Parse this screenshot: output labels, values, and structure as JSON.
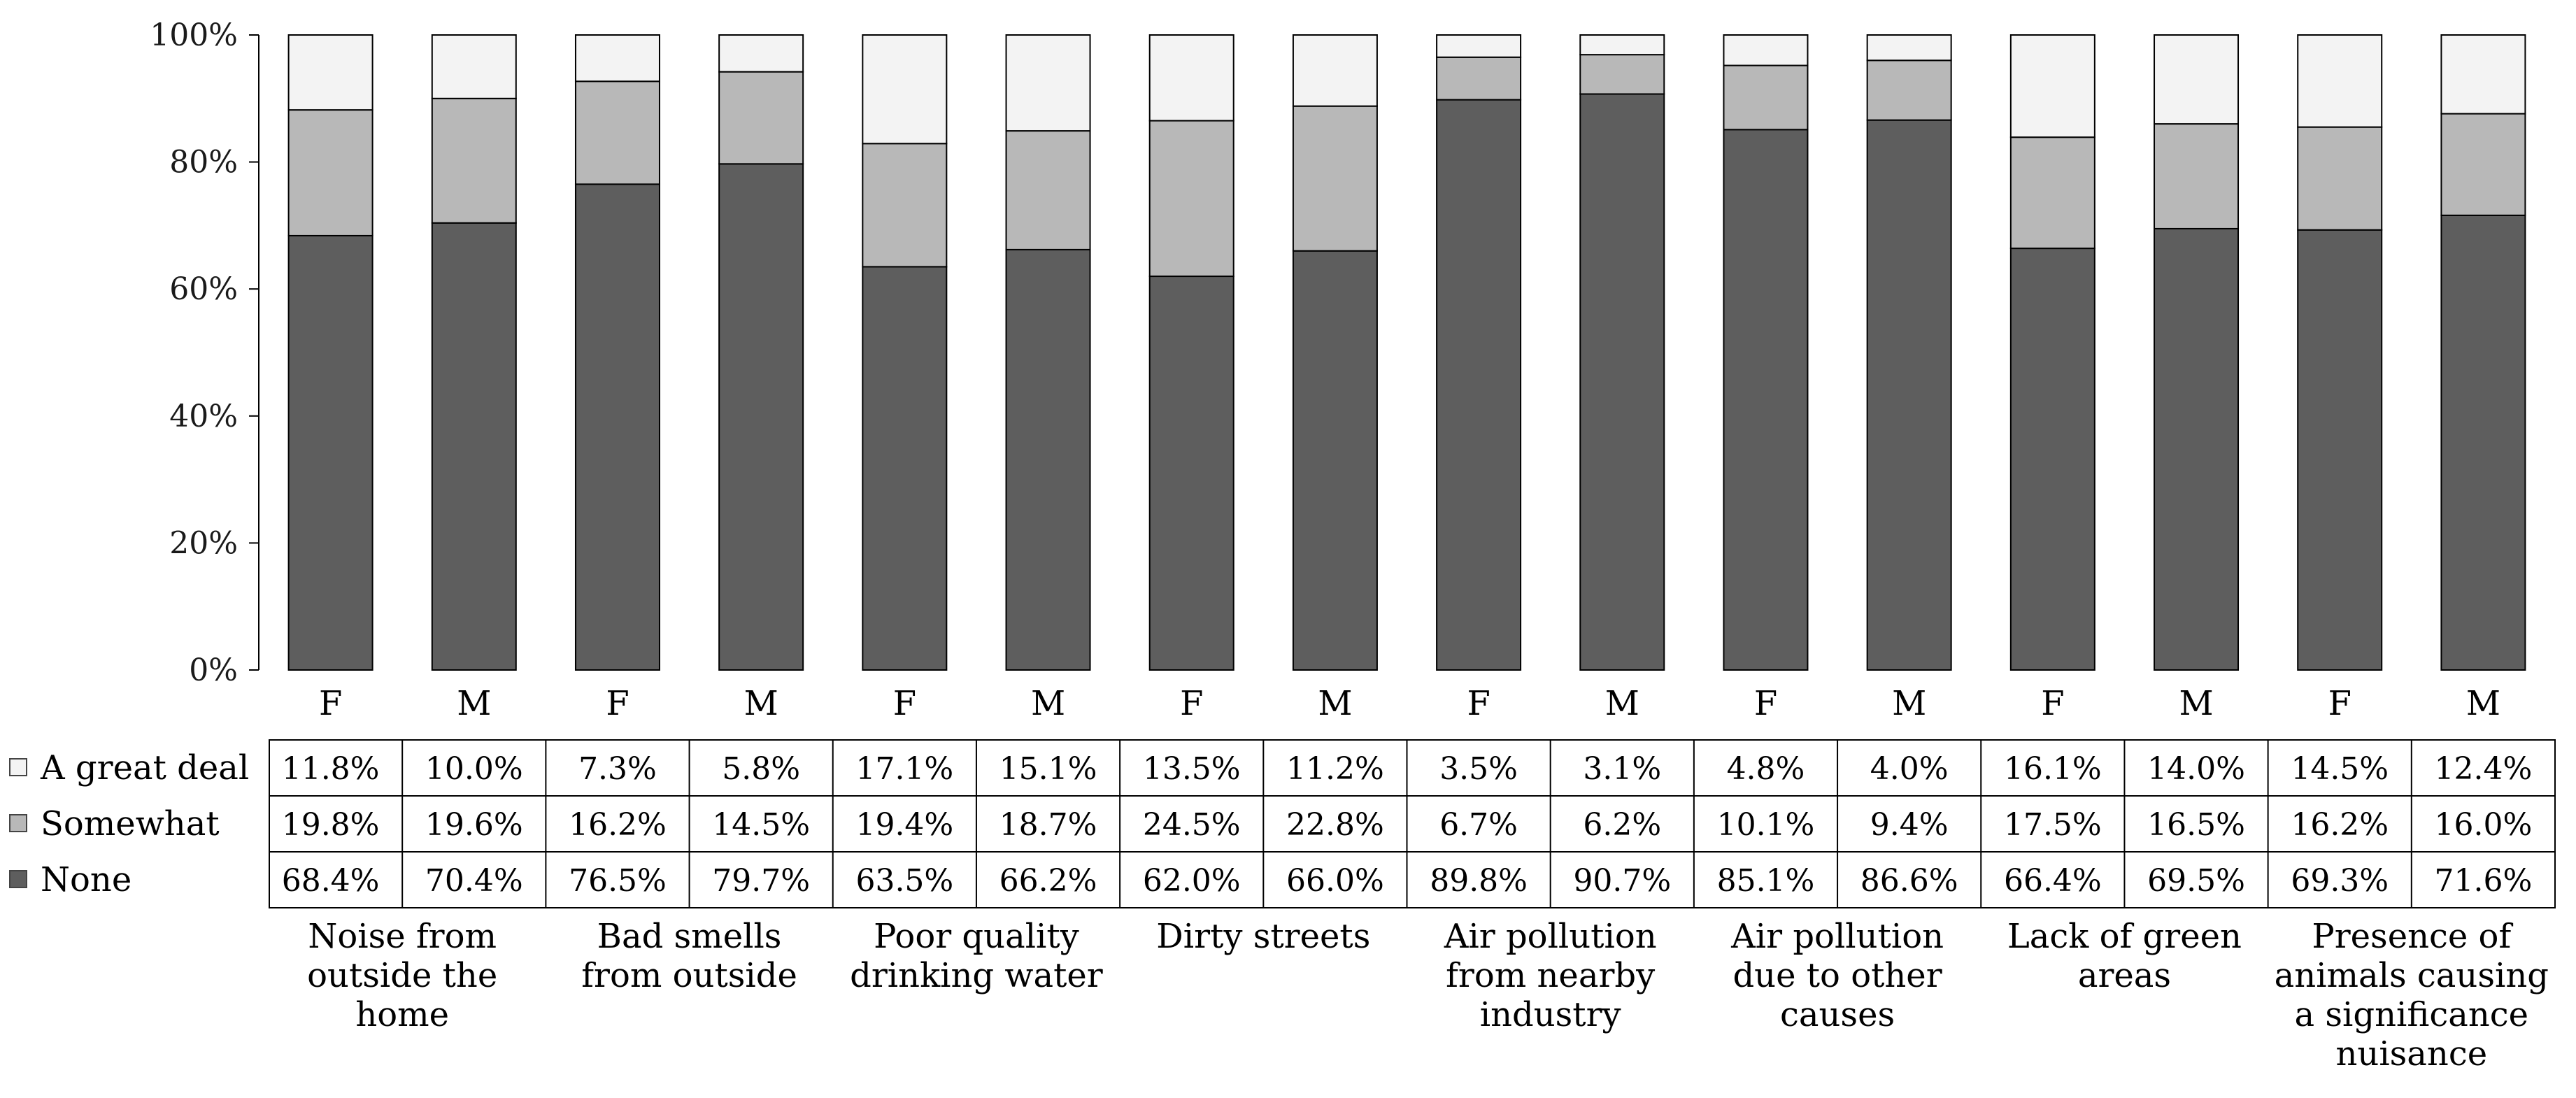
{
  "chart_data": {
    "type": "bar",
    "stacked": true,
    "percent": true,
    "ylim": [
      0,
      100
    ],
    "yticks": [
      0,
      20,
      40,
      60,
      80,
      100
    ],
    "ytick_labels": [
      "0%",
      "20%",
      "40%",
      "60%",
      "80%",
      "100%"
    ],
    "title": "",
    "xlabel": "",
    "ylabel": "",
    "grid": false,
    "legend_position": "left of data table",
    "groups": [
      "Noise from outside the home",
      "Bad smells from outside",
      "Poor quality drinking water",
      "Dirty streets",
      "Air pollution from nearby industry",
      "Air pollution due to other causes",
      "Lack of green areas",
      "Presence of animals causing a significance nuisance"
    ],
    "group_label_lines": [
      [
        "Noise from",
        "outside the",
        "home"
      ],
      [
        "Bad smells",
        "from outside"
      ],
      [
        "Poor quality",
        "drinking water"
      ],
      [
        "Dirty streets"
      ],
      [
        "Air pollution",
        "from nearby",
        "industry"
      ],
      [
        "Air pollution",
        "due to other",
        "causes"
      ],
      [
        "Lack of green",
        "areas"
      ],
      [
        "Presence of",
        "animals causing",
        "a significance",
        "nuisance"
      ]
    ],
    "categories": [
      "F",
      "M",
      "F",
      "M",
      "F",
      "M",
      "F",
      "M",
      "F",
      "M",
      "F",
      "M",
      "F",
      "M",
      "F",
      "M"
    ],
    "series": [
      {
        "name": "None",
        "color": "#5e5e5e",
        "values": [
          68.4,
          70.4,
          76.5,
          79.7,
          63.5,
          66.2,
          62.0,
          66.0,
          89.8,
          90.7,
          85.1,
          86.6,
          66.4,
          69.5,
          69.3,
          71.6
        ],
        "labels": [
          "68.4%",
          "70.4%",
          "76.5%",
          "79.7%",
          "63.5%",
          "66.2%",
          "62.0%",
          "66.0%",
          "89.8%",
          "90.7%",
          "85.1%",
          "86.6%",
          "66.4%",
          "69.5%",
          "69.3%",
          "71.6%"
        ]
      },
      {
        "name": "Somewhat",
        "color": "#b8b8b8",
        "values": [
          19.8,
          19.6,
          16.2,
          14.5,
          19.4,
          18.7,
          24.5,
          22.8,
          6.7,
          6.2,
          10.1,
          9.4,
          17.5,
          16.5,
          16.2,
          16.0
        ],
        "labels": [
          "19.8%",
          "19.6%",
          "16.2%",
          "14.5%",
          "19.4%",
          "18.7%",
          "24.5%",
          "22.8%",
          "6.7%",
          "6.2%",
          "10.1%",
          "9.4%",
          "17.5%",
          "16.5%",
          "16.2%",
          "16.0%"
        ]
      },
      {
        "name": "A great deal",
        "color": "#f3f3f3",
        "values": [
          11.8,
          10.0,
          7.3,
          5.8,
          17.1,
          15.1,
          13.5,
          11.2,
          3.5,
          3.1,
          4.8,
          4.0,
          16.1,
          14.0,
          14.5,
          12.4
        ],
        "labels": [
          "11.8%",
          "10.0%",
          "7.3%",
          "5.8%",
          "17.1%",
          "15.1%",
          "13.5%",
          "11.2%",
          "3.5%",
          "3.1%",
          "4.8%",
          "4.0%",
          "16.1%",
          "14.0%",
          "14.5%",
          "12.4%"
        ]
      }
    ],
    "table_row_order": [
      "A great deal",
      "Somewhat",
      "None"
    ]
  }
}
